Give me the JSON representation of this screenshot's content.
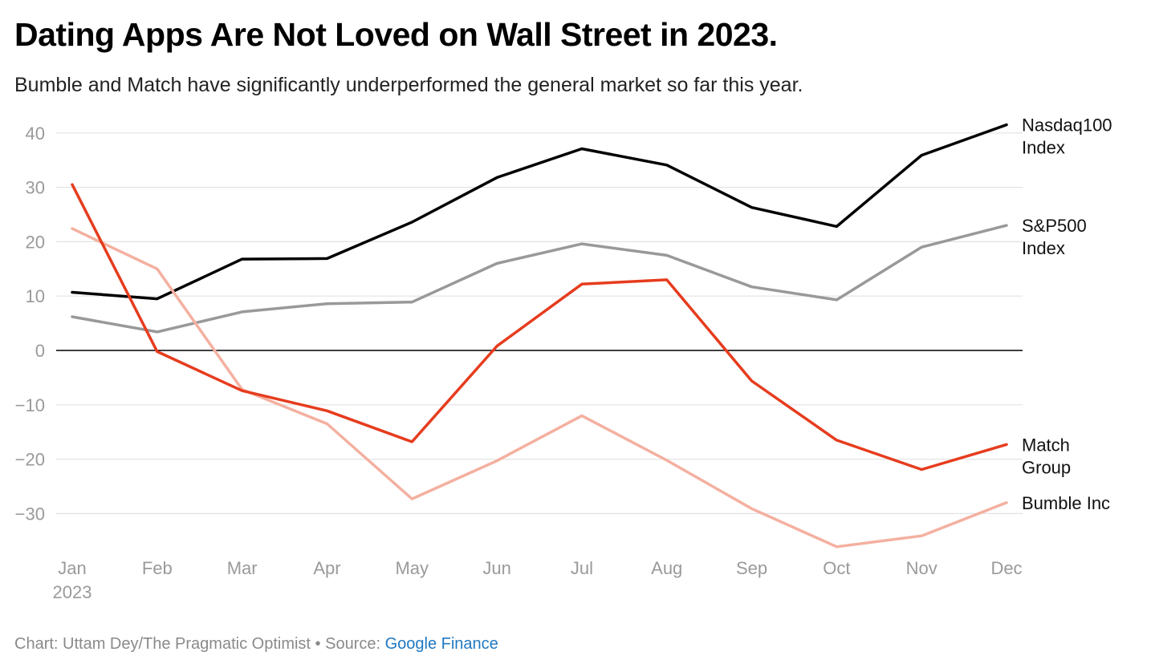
{
  "header": {
    "title": "Dating Apps Are Not Loved on Wall Street in 2023.",
    "subtitle": "Bumble and Match have significantly underperformed the general market so far this year."
  },
  "footer": {
    "credit": "Chart: Uttam Dey/The Pragmatic Optimist • Source: ",
    "source_link": "Google Finance"
  },
  "chart_data": {
    "type": "line",
    "categories": [
      "Jan",
      "Feb",
      "Mar",
      "Apr",
      "May",
      "Jun",
      "Jul",
      "Aug",
      "Sep",
      "Oct",
      "Nov",
      "Dec"
    ],
    "year_label": "2023",
    "ylim": [
      -36,
      42
    ],
    "yticks": [
      40,
      30,
      20,
      10,
      0,
      -10,
      -20,
      -30
    ],
    "ytick_labels": [
      "40",
      "30",
      "20",
      "10",
      "0",
      "−10",
      "−20",
      "−30"
    ],
    "grid": true,
    "zero_line": true,
    "series": [
      {
        "name": "Nasdaq100 Index",
        "label_lines": [
          "Nasdaq100",
          "Index"
        ],
        "color": "#000000",
        "values": [
          10.7,
          9.5,
          16.8,
          16.9,
          23.6,
          31.8,
          37.1,
          34.1,
          26.3,
          22.8,
          35.9,
          41.5
        ]
      },
      {
        "name": "S&P500 Index",
        "label_lines": [
          "S&P500",
          "Index"
        ],
        "color": "#999999",
        "values": [
          6.2,
          3.4,
          7.1,
          8.6,
          8.9,
          16.0,
          19.6,
          17.5,
          11.7,
          9.3,
          19.0,
          23.0
        ]
      },
      {
        "name": "Match Group",
        "label_lines": [
          "Match",
          "Group"
        ],
        "color": "#e63c1e",
        "values": [
          30.5,
          -0.2,
          -7.4,
          -11.1,
          -16.8,
          0.8,
          12.2,
          13.0,
          -5.6,
          -16.5,
          -21.9,
          -17.3
        ]
      },
      {
        "name": "Bumble Inc",
        "label_lines": [
          "Bumble Inc"
        ],
        "color": "#f4b0a0",
        "values": [
          22.4,
          15.0,
          -7.2,
          -13.5,
          -27.3,
          -20.3,
          -12.0,
          -20.2,
          -29.1,
          -36.1,
          -34.1,
          -28.0
        ]
      }
    ]
  }
}
